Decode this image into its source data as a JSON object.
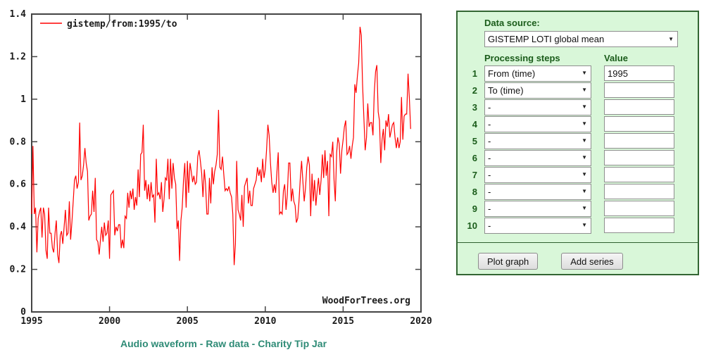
{
  "chart_data": {
    "type": "line",
    "title": "",
    "xlabel": "",
    "ylabel": "",
    "xlim": [
      1995,
      2020
    ],
    "ylim": [
      0,
      1.4
    ],
    "x_ticks": [
      1995,
      2000,
      2005,
      2010,
      2015,
      2020
    ],
    "x_tick_labels": [
      "1995",
      "2000",
      "2005",
      "2010",
      "2015",
      "2020"
    ],
    "y_ticks": [
      0,
      0.2,
      0.4,
      0.6,
      0.8,
      1,
      1.2,
      1.4
    ],
    "y_tick_labels": [
      "0",
      "0.2",
      "0.4",
      "0.6",
      "0.8",
      "1",
      "1.2",
      "1.4"
    ],
    "grid": false,
    "legend_position": "top-left",
    "axis_color": "#444444",
    "watermark": "WoodForTrees.org",
    "series": [
      {
        "name": "gistemp/from:1995/to",
        "color": "#ff0000",
        "x_start": 1995.0,
        "x_step": 0.0833333,
        "values": [
          0.46,
          0.78,
          0.46,
          0.49,
          0.28,
          0.44,
          0.47,
          0.49,
          0.35,
          0.49,
          0.46,
          0.29,
          0.25,
          0.49,
          0.37,
          0.37,
          0.3,
          0.28,
          0.37,
          0.43,
          0.27,
          0.23,
          0.36,
          0.38,
          0.32,
          0.4,
          0.48,
          0.36,
          0.37,
          0.52,
          0.34,
          0.42,
          0.52,
          0.62,
          0.64,
          0.58,
          0.61,
          0.89,
          0.62,
          0.64,
          0.69,
          0.77,
          0.7,
          0.66,
          0.43,
          0.45,
          0.46,
          0.57,
          0.47,
          0.63,
          0.34,
          0.33,
          0.27,
          0.34,
          0.4,
          0.33,
          0.42,
          0.36,
          0.37,
          0.43,
          0.25,
          0.55,
          0.56,
          0.57,
          0.36,
          0.4,
          0.38,
          0.41,
          0.41,
          0.3,
          0.34,
          0.3,
          0.45,
          0.44,
          0.56,
          0.49,
          0.57,
          0.53,
          0.58,
          0.48,
          0.54,
          0.5,
          0.67,
          0.54,
          0.74,
          0.75,
          0.88,
          0.57,
          0.62,
          0.53,
          0.6,
          0.52,
          0.61,
          0.54,
          0.55,
          0.42,
          0.72,
          0.55,
          0.56,
          0.53,
          0.61,
          0.47,
          0.53,
          0.63,
          0.62,
          0.72,
          0.53,
          0.72,
          0.58,
          0.7,
          0.63,
          0.6,
          0.39,
          0.43,
          0.24,
          0.43,
          0.49,
          0.62,
          0.7,
          0.49,
          0.71,
          0.56,
          0.7,
          0.66,
          0.61,
          0.64,
          0.6,
          0.61,
          0.73,
          0.76,
          0.71,
          0.65,
          0.54,
          0.67,
          0.6,
          0.46,
          0.46,
          0.63,
          0.51,
          0.68,
          0.6,
          0.66,
          0.69,
          0.74,
          0.95,
          0.68,
          0.67,
          0.73,
          0.65,
          0.57,
          0.58,
          0.57,
          0.59,
          0.56,
          0.54,
          0.46,
          0.22,
          0.32,
          0.71,
          0.48,
          0.46,
          0.43,
          0.55,
          0.4,
          0.59,
          0.61,
          0.63,
          0.51,
          0.57,
          0.5,
          0.5,
          0.58,
          0.6,
          0.62,
          0.68,
          0.64,
          0.67,
          0.61,
          0.72,
          0.63,
          0.67,
          0.76,
          0.88,
          0.83,
          0.7,
          0.61,
          0.56,
          0.6,
          0.56,
          0.66,
          0.75,
          0.46,
          0.47,
          0.46,
          0.57,
          0.6,
          0.48,
          0.55,
          0.7,
          0.7,
          0.52,
          0.58,
          0.52,
          0.5,
          0.42,
          0.44,
          0.52,
          0.63,
          0.71,
          0.61,
          0.52,
          0.58,
          0.68,
          0.73,
          0.69,
          0.45,
          0.65,
          0.52,
          0.62,
          0.5,
          0.57,
          0.63,
          0.55,
          0.62,
          0.74,
          0.63,
          0.76,
          0.64,
          0.71,
          0.45,
          0.74,
          0.73,
          0.8,
          0.62,
          0.52,
          0.75,
          0.82,
          0.79,
          0.65,
          0.76,
          0.81,
          0.87,
          0.9,
          0.74,
          0.75,
          0.78,
          0.72,
          0.78,
          0.82,
          1.07,
          1.03,
          1.11,
          1.17,
          1.34,
          1.3,
          1.07,
          0.91,
          0.76,
          0.82,
          0.98,
          0.87,
          0.89,
          0.89,
          0.83,
          1.03,
          1.13,
          1.16,
          0.94,
          0.9,
          0.7,
          0.81,
          0.86,
          0.76,
          0.9,
          0.87,
          0.93,
          0.82,
          0.85,
          0.88,
          0.89,
          0.82,
          0.77,
          0.82,
          0.77,
          0.8,
          1.01,
          0.81,
          0.92,
          0.93,
          0.93,
          1.12,
          1.01,
          0.86
        ]
      }
    ]
  },
  "panel": {
    "background": "#d9f7d9",
    "border_color": "#336633",
    "accent_text_color": "#1a5c1a",
    "data_source_label": "Data source:",
    "data_source_selected": "GISTEMP LOTI global mean",
    "processing_steps_header": "Processing steps",
    "value_header": "Value",
    "rows": [
      {
        "num": "1",
        "step": "From (time)",
        "value": "1995"
      },
      {
        "num": "2",
        "step": "To (time)",
        "value": ""
      },
      {
        "num": "3",
        "step": "-",
        "value": ""
      },
      {
        "num": "4",
        "step": "-",
        "value": ""
      },
      {
        "num": "5",
        "step": "-",
        "value": ""
      },
      {
        "num": "6",
        "step": "-",
        "value": ""
      },
      {
        "num": "7",
        "step": "-",
        "value": ""
      },
      {
        "num": "8",
        "step": "-",
        "value": ""
      },
      {
        "num": "9",
        "step": "-",
        "value": ""
      },
      {
        "num": "10",
        "step": "-",
        "value": ""
      }
    ],
    "plot_graph_button": "Plot graph",
    "add_series_button": "Add series",
    "dropdown_arrow": "▼"
  },
  "footer": {
    "links": [
      "Audio waveform",
      "Raw data",
      "Charity Tip Jar"
    ],
    "separator": " - ",
    "link_color": "#2e8b76"
  }
}
